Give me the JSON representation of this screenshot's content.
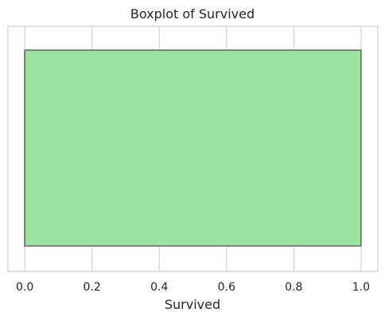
{
  "chart_data": {
    "type": "boxplot",
    "title": "Boxplot of Survived",
    "xlabel": "Survived",
    "ylabel": "",
    "xlim": [
      -0.05,
      1.05
    ],
    "xticks": [
      0.0,
      0.2,
      0.4,
      0.6,
      0.8,
      1.0
    ],
    "xtick_labels": [
      "0.0",
      "0.2",
      "0.4",
      "0.6",
      "0.8",
      "1.0"
    ],
    "grid": true,
    "box": {
      "min": 0.0,
      "q1": 0.0,
      "median": 0.0,
      "q3": 1.0,
      "max": 1.0
    },
    "colors": {
      "box_fill": "#9de29e",
      "box_edge": "#666666",
      "grid": "#d3d3d3",
      "frame": "#cccccc"
    }
  }
}
